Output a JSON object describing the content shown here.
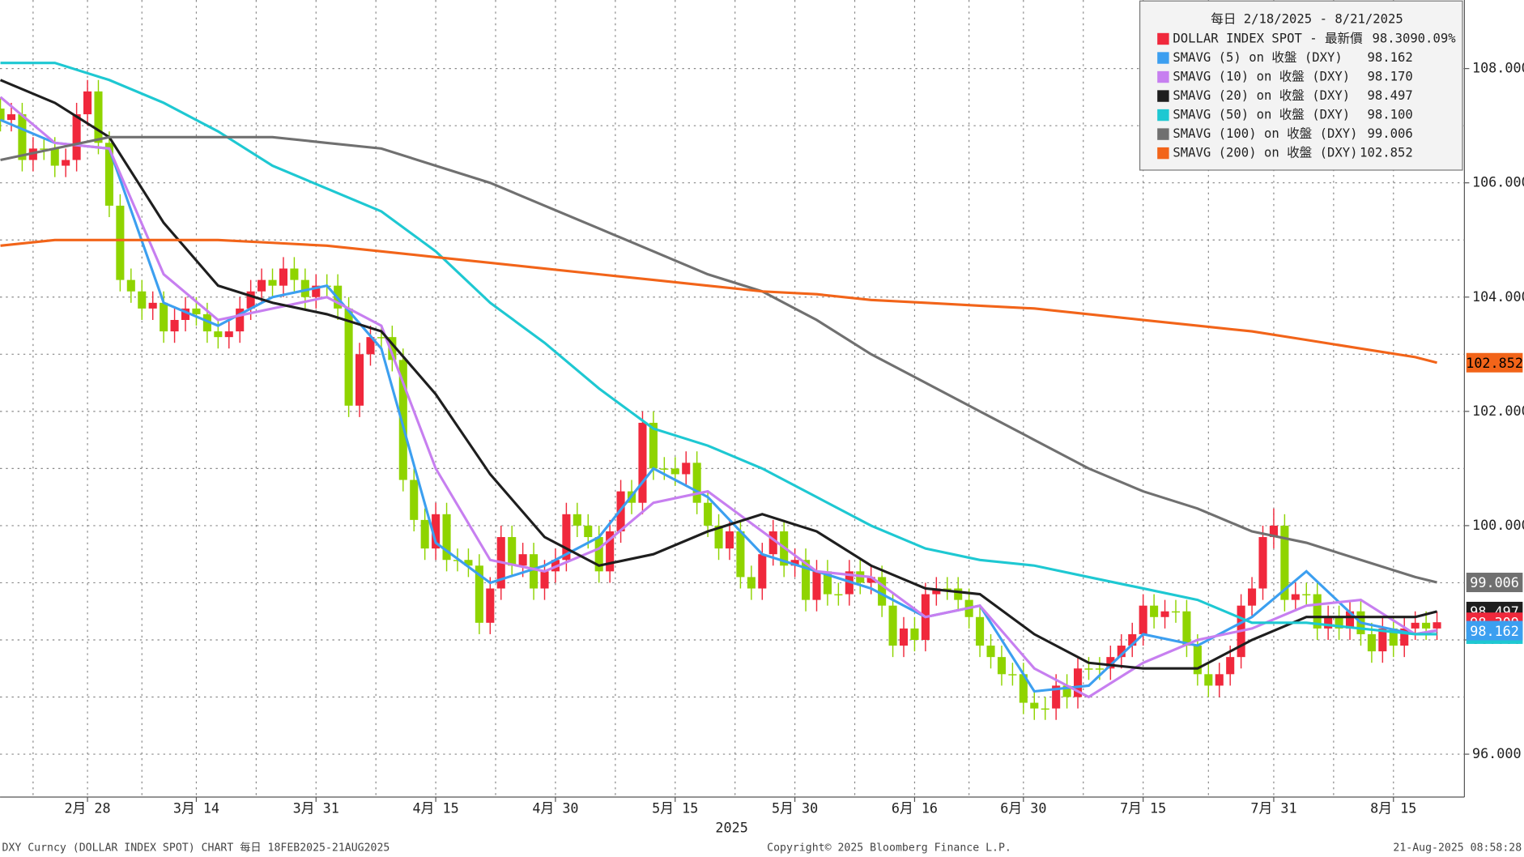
{
  "chart_data": {
    "type": "candlestick",
    "categories": [
      "2025-02-18",
      "2025-02-19",
      "2025-02-20",
      "2025-02-21",
      "2025-02-24",
      "2025-02-25",
      "2025-02-26",
      "2025-02-27",
      "2025-02-28",
      "2025-03-03",
      "2025-03-04",
      "2025-03-05",
      "2025-03-06",
      "2025-03-07",
      "2025-03-10",
      "2025-03-11",
      "2025-03-12",
      "2025-03-13",
      "2025-03-14",
      "2025-03-17",
      "2025-03-18",
      "2025-03-19",
      "2025-03-20",
      "2025-03-21",
      "2025-03-24",
      "2025-03-25",
      "2025-03-26",
      "2025-03-27",
      "2025-03-28",
      "2025-03-31",
      "2025-04-01",
      "2025-04-02",
      "2025-04-03",
      "2025-04-04",
      "2025-04-07",
      "2025-04-08",
      "2025-04-09",
      "2025-04-10",
      "2025-04-11",
      "2025-04-14",
      "2025-04-15",
      "2025-04-16",
      "2025-04-17",
      "2025-04-18",
      "2025-04-21",
      "2025-04-22",
      "2025-04-23",
      "2025-04-24",
      "2025-04-25",
      "2025-04-28",
      "2025-04-29",
      "2025-04-30",
      "2025-05-01",
      "2025-05-02",
      "2025-05-05",
      "2025-05-06",
      "2025-05-07",
      "2025-05-08",
      "2025-05-09",
      "2025-05-12",
      "2025-05-13",
      "2025-05-14",
      "2025-05-15",
      "2025-05-16",
      "2025-05-19",
      "2025-05-20",
      "2025-05-21",
      "2025-05-22",
      "2025-05-23",
      "2025-05-26",
      "2025-05-27",
      "2025-05-28",
      "2025-05-29",
      "2025-05-30",
      "2025-06-02",
      "2025-06-03",
      "2025-06-04",
      "2025-06-05",
      "2025-06-06",
      "2025-06-09",
      "2025-06-10",
      "2025-06-11",
      "2025-06-12",
      "2025-06-13",
      "2025-06-16",
      "2025-06-17",
      "2025-06-18",
      "2025-06-19",
      "2025-06-20",
      "2025-06-23",
      "2025-06-24",
      "2025-06-25",
      "2025-06-26",
      "2025-06-27",
      "2025-06-30",
      "2025-07-01",
      "2025-07-02",
      "2025-07-03",
      "2025-07-04",
      "2025-07-07",
      "2025-07-08",
      "2025-07-09",
      "2025-07-10",
      "2025-07-11",
      "2025-07-14",
      "2025-07-15",
      "2025-07-16",
      "2025-07-17",
      "2025-07-18",
      "2025-07-21",
      "2025-07-22",
      "2025-07-23",
      "2025-07-24",
      "2025-07-25",
      "2025-07-28",
      "2025-07-29",
      "2025-07-30",
      "2025-07-31",
      "2025-08-01",
      "2025-08-04",
      "2025-08-05",
      "2025-08-06",
      "2025-08-07",
      "2025-08-08",
      "2025-08-11",
      "2025-08-12",
      "2025-08-13",
      "2025-08-14",
      "2025-08-15",
      "2025-08-18",
      "2025-08-19",
      "2025-08-20",
      "2025-08-21"
    ],
    "open": [
      107.3,
      107.1,
      107.2,
      106.4,
      106.6,
      106.6,
      106.3,
      106.4,
      107.2,
      107.6,
      106.7,
      105.6,
      104.3,
      104.1,
      103.8,
      103.9,
      103.4,
      103.6,
      103.8,
      103.7,
      103.4,
      103.3,
      103.4,
      103.8,
      104.1,
      104.3,
      104.2,
      104.5,
      104.3,
      104.0,
      104.2,
      104.2,
      103.8,
      102.1,
      103.0,
      103.3,
      103.3,
      102.9,
      100.8,
      100.1,
      99.6,
      100.2,
      99.4,
      99.4,
      99.3,
      98.3,
      98.9,
      99.8,
      99.3,
      99.5,
      98.9,
      99.2,
      99.4,
      100.2,
      100.0,
      99.8,
      99.2,
      99.9,
      100.6,
      100.4,
      101.8,
      101.0,
      101.0,
      100.9,
      101.1,
      100.4,
      100.0,
      99.6,
      99.9,
      99.1,
      98.9,
      99.5,
      99.9,
      99.3,
      99.4,
      98.7,
      99.2,
      98.8,
      98.8,
      99.2,
      99.0,
      99.1,
      98.6,
      97.9,
      98.2,
      98.0,
      98.8,
      98.9,
      98.9,
      98.7,
      98.4,
      97.9,
      97.7,
      97.4,
      97.4,
      96.9,
      96.8,
      96.8,
      97.2,
      97.0,
      97.5,
      97.5,
      97.5,
      97.7,
      97.9,
      98.1,
      98.6,
      98.4,
      98.5,
      98.5,
      97.9,
      97.4,
      97.2,
      97.4,
      97.7,
      98.6,
      98.9,
      99.8,
      100.0,
      98.7,
      98.8,
      98.8,
      98.2,
      98.4,
      98.2,
      98.5,
      98.1,
      97.8,
      98.2,
      97.9,
      98.2,
      98.3,
      98.2
    ],
    "high": [
      107.5,
      107.4,
      107.4,
      106.8,
      106.8,
      106.8,
      106.6,
      107.4,
      107.8,
      107.8,
      106.9,
      105.8,
      104.5,
      104.3,
      104.1,
      104.1,
      103.8,
      104.0,
      104.0,
      103.9,
      103.6,
      103.6,
      104.0,
      104.3,
      104.5,
      104.5,
      104.7,
      104.7,
      104.5,
      104.4,
      104.4,
      104.4,
      104.0,
      103.2,
      103.5,
      103.5,
      103.5,
      103.1,
      101.0,
      100.3,
      100.4,
      100.4,
      99.6,
      99.6,
      99.5,
      99.1,
      100.0,
      100.0,
      99.7,
      99.7,
      99.4,
      99.6,
      100.4,
      100.4,
      100.2,
      100.0,
      100.1,
      100.8,
      100.8,
      102.0,
      102.0,
      101.2,
      101.2,
      101.3,
      101.3,
      100.6,
      100.2,
      100.1,
      100.1,
      99.3,
      99.7,
      100.1,
      100.1,
      99.6,
      99.6,
      99.4,
      99.4,
      99.0,
      99.4,
      99.4,
      99.3,
      99.3,
      98.8,
      98.4,
      98.4,
      99.0,
      99.1,
      99.1,
      99.1,
      98.9,
      98.6,
      98.1,
      97.9,
      97.6,
      97.6,
      97.1,
      97.0,
      97.4,
      97.4,
      97.7,
      97.7,
      97.7,
      97.9,
      98.1,
      98.3,
      98.8,
      98.8,
      98.7,
      98.7,
      98.7,
      98.1,
      97.6,
      97.6,
      97.9,
      98.8,
      99.1,
      100.0,
      100.3,
      100.2,
      99.0,
      99.0,
      99.0,
      98.6,
      98.6,
      98.7,
      98.7,
      98.3,
      98.4,
      98.4,
      98.4,
      98.5,
      98.5,
      98.5
    ],
    "low": [
      106.9,
      106.9,
      106.2,
      106.2,
      106.4,
      106.1,
      106.1,
      106.2,
      107.0,
      106.5,
      105.4,
      104.1,
      103.9,
      103.6,
      103.6,
      103.2,
      103.2,
      103.4,
      103.5,
      103.2,
      103.1,
      103.1,
      103.2,
      103.6,
      103.9,
      104.0,
      104.0,
      104.1,
      103.8,
      103.8,
      104.0,
      103.6,
      101.9,
      101.9,
      102.8,
      103.1,
      102.7,
      100.6,
      99.9,
      99.4,
      99.4,
      99.2,
      99.2,
      99.1,
      98.1,
      98.1,
      98.7,
      99.1,
      99.1,
      98.7,
      98.7,
      99.0,
      99.2,
      99.8,
      99.6,
      99.0,
      99.0,
      99.7,
      100.2,
      100.2,
      100.8,
      100.8,
      100.7,
      100.7,
      100.2,
      99.8,
      99.4,
      99.4,
      98.9,
      98.7,
      98.7,
      99.3,
      99.1,
      99.1,
      98.5,
      98.5,
      98.6,
      98.6,
      98.6,
      98.8,
      98.8,
      98.4,
      97.7,
      97.7,
      97.8,
      97.8,
      98.6,
      98.7,
      98.5,
      98.2,
      97.7,
      97.5,
      97.2,
      97.2,
      96.7,
      96.6,
      96.6,
      96.6,
      96.8,
      96.8,
      97.3,
      97.3,
      97.3,
      97.5,
      97.7,
      97.9,
      98.2,
      98.2,
      98.3,
      97.7,
      97.2,
      97.0,
      97.0,
      97.2,
      97.5,
      98.4,
      98.7,
      99.6,
      98.5,
      98.5,
      98.6,
      98.0,
      98.0,
      98.0,
      98.0,
      97.9,
      97.6,
      97.6,
      97.7,
      97.7,
      98.0,
      98.0,
      98.0
    ],
    "close": [
      107.1,
      107.2,
      106.4,
      106.6,
      106.6,
      106.3,
      106.4,
      107.2,
      107.6,
      106.7,
      105.6,
      104.3,
      104.1,
      103.8,
      103.9,
      103.4,
      103.6,
      103.8,
      103.7,
      103.4,
      103.3,
      103.4,
      103.8,
      104.1,
      104.3,
      104.2,
      104.5,
      104.3,
      104.0,
      104.2,
      104.2,
      103.8,
      102.1,
      103.0,
      103.3,
      103.3,
      102.9,
      100.8,
      100.1,
      99.6,
      100.2,
      99.4,
      99.4,
      99.3,
      98.3,
      98.9,
      99.8,
      99.3,
      99.5,
      98.9,
      99.2,
      99.4,
      100.2,
      100.0,
      99.8,
      99.2,
      99.9,
      100.6,
      100.4,
      101.8,
      101.0,
      101.0,
      100.9,
      101.1,
      100.4,
      100.0,
      99.6,
      99.9,
      99.1,
      98.9,
      99.5,
      99.9,
      99.3,
      99.4,
      98.7,
      99.2,
      98.8,
      98.8,
      99.2,
      99.0,
      99.1,
      98.6,
      97.9,
      98.2,
      98.0,
      98.8,
      98.9,
      98.9,
      98.7,
      98.4,
      97.9,
      97.7,
      97.4,
      97.4,
      96.9,
      96.8,
      96.8,
      97.2,
      97.0,
      97.5,
      97.5,
      97.5,
      97.7,
      97.9,
      98.1,
      98.6,
      98.4,
      98.5,
      98.5,
      97.9,
      97.4,
      97.2,
      97.4,
      97.7,
      98.6,
      98.9,
      99.8,
      100.0,
      98.7,
      98.8,
      98.8,
      98.2,
      98.4,
      98.2,
      98.5,
      98.1,
      97.8,
      98.2,
      97.9,
      98.2,
      98.3,
      98.2,
      98.309
    ],
    "up_color": "#f0283c",
    "down_color": "#8fd400",
    "candle_name": "DOLLAR INDEX SPOT - 最新價",
    "change": 0.09,
    "change_label": "0.09%",
    "legend_title": "每日 2/18/2025 - 8/21/2025",
    "lines": [
      {
        "name": "SMAVG (5) on 收盤 (DXY)",
        "color": "#3c9ff0",
        "last_label": "98.162",
        "x": [
          "2025-02-18",
          "2025-02-25",
          "2025-03-04",
          "2025-03-11",
          "2025-03-18",
          "2025-03-25",
          "2025-04-01",
          "2025-04-08",
          "2025-04-15",
          "2025-04-22",
          "2025-04-29",
          "2025-05-06",
          "2025-05-13",
          "2025-05-20",
          "2025-05-27",
          "2025-06-03",
          "2025-06-10",
          "2025-06-17",
          "2025-06-24",
          "2025-07-01",
          "2025-07-08",
          "2025-07-15",
          "2025-07-22",
          "2025-07-29",
          "2025-08-05",
          "2025-08-12",
          "2025-08-19",
          "2025-08-21"
        ],
        "values": [
          107.1,
          106.7,
          106.6,
          103.9,
          103.5,
          104.0,
          104.2,
          103.1,
          99.7,
          99.0,
          99.3,
          99.8,
          101.0,
          100.5,
          99.5,
          99.2,
          98.9,
          98.4,
          98.6,
          97.1,
          97.2,
          98.1,
          97.9,
          98.4,
          99.2,
          98.3,
          98.1,
          98.162
        ]
      },
      {
        "name": "SMAVG (10) on 收盤 (DXY)",
        "color": "#c77ff0",
        "last_label": "98.170",
        "x": [
          "2025-02-18",
          "2025-02-25",
          "2025-03-04",
          "2025-03-11",
          "2025-03-18",
          "2025-03-25",
          "2025-04-01",
          "2025-04-08",
          "2025-04-15",
          "2025-04-22",
          "2025-04-29",
          "2025-05-06",
          "2025-05-13",
          "2025-05-20",
          "2025-05-27",
          "2025-06-03",
          "2025-06-10",
          "2025-06-17",
          "2025-06-24",
          "2025-07-01",
          "2025-07-08",
          "2025-07-15",
          "2025-07-22",
          "2025-07-29",
          "2025-08-05",
          "2025-08-12",
          "2025-08-19",
          "2025-08-21"
        ],
        "values": [
          107.5,
          106.7,
          106.6,
          104.4,
          103.6,
          103.8,
          104.0,
          103.5,
          101.0,
          99.4,
          99.2,
          99.6,
          100.4,
          100.6,
          99.9,
          99.2,
          99.1,
          98.4,
          98.6,
          97.5,
          97.0,
          97.6,
          98.0,
          98.2,
          98.6,
          98.7,
          98.1,
          98.17
        ]
      },
      {
        "name": "SMAVG (20) on 收盤 (DXY)",
        "color": "#1e1e1e",
        "last_label": "98.497",
        "x": [
          "2025-02-18",
          "2025-02-25",
          "2025-03-04",
          "2025-03-11",
          "2025-03-18",
          "2025-03-25",
          "2025-04-01",
          "2025-04-08",
          "2025-04-15",
          "2025-04-22",
          "2025-04-29",
          "2025-05-06",
          "2025-05-13",
          "2025-05-20",
          "2025-05-27",
          "2025-06-03",
          "2025-06-10",
          "2025-06-17",
          "2025-06-24",
          "2025-07-01",
          "2025-07-08",
          "2025-07-15",
          "2025-07-22",
          "2025-07-29",
          "2025-08-05",
          "2025-08-12",
          "2025-08-19",
          "2025-08-21"
        ],
        "values": [
          107.8,
          107.4,
          106.8,
          105.3,
          104.2,
          103.9,
          103.7,
          103.4,
          102.3,
          100.9,
          99.8,
          99.3,
          99.5,
          99.9,
          100.2,
          99.9,
          99.3,
          98.9,
          98.8,
          98.1,
          97.6,
          97.5,
          97.5,
          98.0,
          98.4,
          98.4,
          98.4,
          98.497
        ]
      },
      {
        "name": "SMAVG (50) on 收盤 (DXY)",
        "color": "#1ec8d2",
        "last_label": "98.100",
        "x": [
          "2025-02-18",
          "2025-02-25",
          "2025-03-04",
          "2025-03-11",
          "2025-03-18",
          "2025-03-25",
          "2025-04-01",
          "2025-04-08",
          "2025-04-15",
          "2025-04-22",
          "2025-04-29",
          "2025-05-06",
          "2025-05-13",
          "2025-05-20",
          "2025-05-27",
          "2025-06-03",
          "2025-06-10",
          "2025-06-17",
          "2025-06-24",
          "2025-07-01",
          "2025-07-08",
          "2025-07-15",
          "2025-07-22",
          "2025-07-29",
          "2025-08-05",
          "2025-08-12",
          "2025-08-19",
          "2025-08-21"
        ],
        "values": [
          108.1,
          108.1,
          107.8,
          107.4,
          106.9,
          106.3,
          105.9,
          105.5,
          104.8,
          103.9,
          103.2,
          102.4,
          101.7,
          101.4,
          101.0,
          100.5,
          100.0,
          99.6,
          99.4,
          99.3,
          99.1,
          98.9,
          98.7,
          98.3,
          98.3,
          98.2,
          98.1,
          98.1
        ]
      },
      {
        "name": "SMAVG (100) on 收盤 (DXY)",
        "color": "#707070",
        "last_label": "99.006",
        "x": [
          "2025-02-18",
          "2025-02-25",
          "2025-03-04",
          "2025-03-11",
          "2025-03-18",
          "2025-03-25",
          "2025-04-01",
          "2025-04-08",
          "2025-04-15",
          "2025-04-22",
          "2025-04-29",
          "2025-05-06",
          "2025-05-13",
          "2025-05-20",
          "2025-05-27",
          "2025-06-03",
          "2025-06-10",
          "2025-06-17",
          "2025-06-24",
          "2025-07-01",
          "2025-07-08",
          "2025-07-15",
          "2025-07-22",
          "2025-07-29",
          "2025-08-05",
          "2025-08-12",
          "2025-08-19",
          "2025-08-21"
        ],
        "values": [
          106.4,
          106.6,
          106.8,
          106.8,
          106.8,
          106.8,
          106.7,
          106.6,
          106.3,
          106.0,
          105.6,
          105.2,
          104.8,
          104.4,
          104.1,
          103.6,
          103.0,
          102.5,
          102.0,
          101.5,
          101.0,
          100.6,
          100.3,
          99.9,
          99.7,
          99.4,
          99.1,
          99.006
        ]
      },
      {
        "name": "SMAVG (200) on 收盤 (DXY)",
        "color": "#f26419",
        "last_label": "102.852",
        "x": [
          "2025-02-18",
          "2025-02-25",
          "2025-03-04",
          "2025-03-11",
          "2025-03-18",
          "2025-03-25",
          "2025-04-01",
          "2025-04-08",
          "2025-04-15",
          "2025-04-22",
          "2025-04-29",
          "2025-05-06",
          "2025-05-13",
          "2025-05-20",
          "2025-05-27",
          "2025-06-03",
          "2025-06-10",
          "2025-06-17",
          "2025-06-24",
          "2025-07-01",
          "2025-07-08",
          "2025-07-15",
          "2025-07-22",
          "2025-07-29",
          "2025-08-05",
          "2025-08-12",
          "2025-08-19",
          "2025-08-21"
        ],
        "values": [
          104.9,
          105.0,
          105.0,
          105.0,
          105.0,
          104.95,
          104.9,
          104.8,
          104.7,
          104.6,
          104.5,
          104.4,
          104.3,
          104.2,
          104.1,
          104.05,
          103.95,
          103.9,
          103.85,
          103.8,
          103.7,
          103.6,
          103.5,
          103.4,
          103.25,
          103.1,
          102.95,
          102.852
        ]
      }
    ],
    "ylim": [
      95.25,
      109.2
    ],
    "yticks": [
      {
        "value": 96,
        "label": "96.000"
      },
      {
        "value": 98,
        "label": "98.000"
      },
      {
        "value": 100,
        "label": "100.000"
      },
      {
        "value": 102,
        "label": "102.000"
      },
      {
        "value": 104,
        "label": "104.000"
      },
      {
        "value": 106,
        "label": "106.000"
      },
      {
        "value": 108,
        "label": "108.000"
      }
    ],
    "minor_yticks": [
      97,
      99,
      101,
      103,
      105,
      107
    ],
    "xticks": [
      {
        "value": "2025-02-28",
        "label": "2月 28"
      },
      {
        "value": "2025-03-14",
        "label": "3月 14"
      },
      {
        "value": "2025-03-31",
        "label": "3月 31"
      },
      {
        "value": "2025-04-15",
        "label": "4月 15"
      },
      {
        "value": "2025-04-30",
        "label": "4月 30"
      },
      {
        "value": "2025-05-15",
        "label": "5月 15"
      },
      {
        "value": "2025-05-30",
        "label": "5月 30"
      },
      {
        "value": "2025-06-16",
        "label": "6月 16"
      },
      {
        "value": "2025-06-30",
        "label": "6月 30"
      },
      {
        "value": "2025-07-15",
        "label": "7月 15"
      },
      {
        "value": "2025-07-31",
        "label": "7月 31"
      },
      {
        "value": "2025-08-15",
        "label": "8月 15"
      }
    ],
    "x_label": "2025",
    "grid": true,
    "footer": {
      "left": "DXY Curncy (DOLLAR INDEX SPOT) CHART  每日 18FEB2025-21AUG2025",
      "center": "Copyright© 2025 Bloomberg Finance L.P.",
      "right": "21-Aug-2025 08:58:28"
    }
  }
}
